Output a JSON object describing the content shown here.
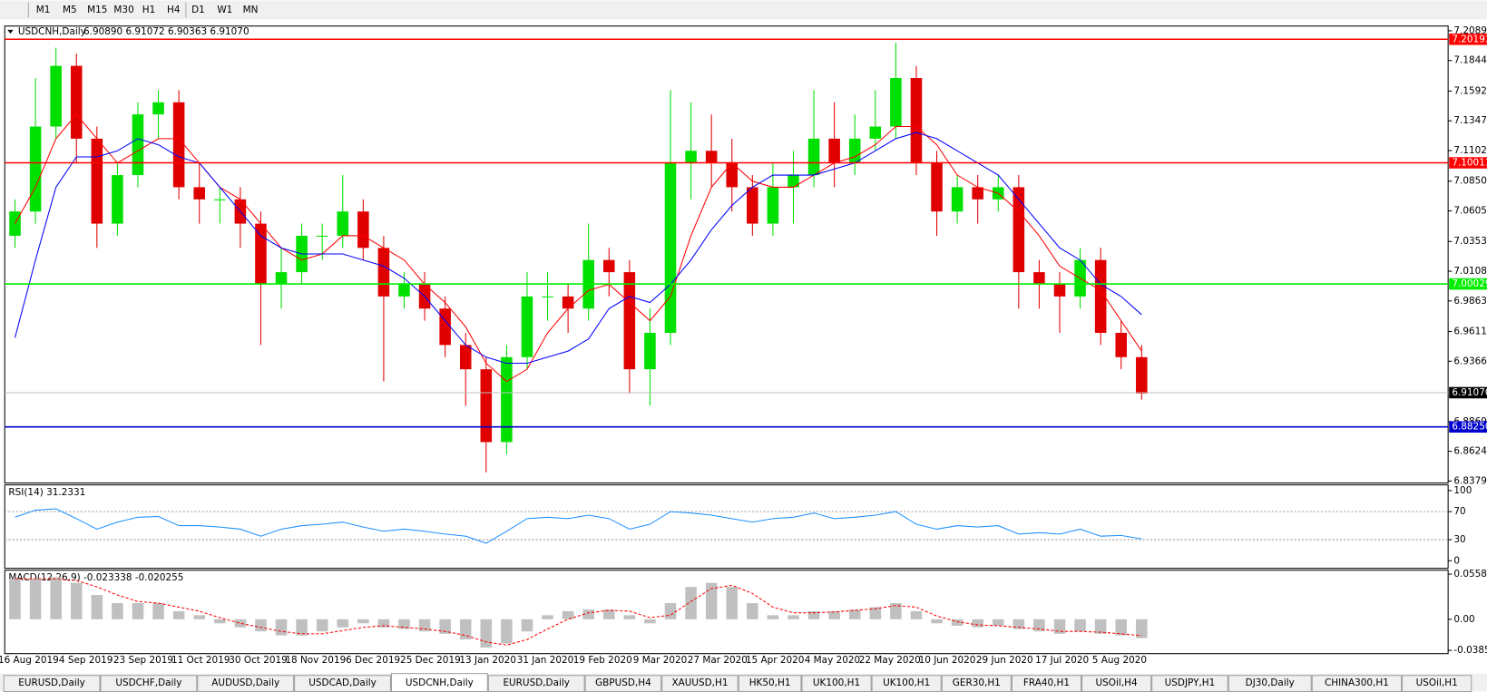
{
  "toolbar": {
    "timeframes": [
      "M1",
      "M5",
      "M15",
      "M30",
      "H1",
      "H4",
      "D1",
      "W1",
      "MN"
    ]
  },
  "tabs": [
    "EURUSD,Daily",
    "USDCHF,Daily",
    "AUDUSD,Daily",
    "USDCAD,Daily",
    "USDCNH,Daily",
    "EURUSD,Daily",
    "GBPUSD,H4",
    "XAUUSD,H1",
    "HK50,H1",
    "UK100,H1",
    "UK100,H1",
    "GER30,H1",
    "FRA40,H1",
    "USOil,H4",
    "USDJPY,H1",
    "DJ30,Daily",
    "CHINA300,H1",
    "USOil,H1"
  ],
  "active_tab": 4,
  "chart_data": [
    {
      "type": "candlestick",
      "title": "USDCNH,Daily",
      "ohlc": "6.90890 6.91072 6.90363 6.91070",
      "up_color": "#00e000",
      "down_color": "#e00000",
      "ylim": [
        6.8363,
        7.2128
      ],
      "yticks": [
        {
          "value": 7.2089,
          "label": "7.20890"
        },
        {
          "value": 7.1844,
          "label": "7.18440"
        },
        {
          "value": 7.1592,
          "label": "7.15920"
        },
        {
          "value": 7.1347,
          "label": "7.13470"
        },
        {
          "value": 7.1102,
          "label": "7.11020"
        },
        {
          "value": 7.085,
          "label": "7.08500"
        },
        {
          "value": 7.0605,
          "label": "7.06050"
        },
        {
          "value": 7.0353,
          "label": "7.03530"
        },
        {
          "value": 7.0108,
          "label": "7.01080"
        },
        {
          "value": 6.9863,
          "label": "6.98630"
        },
        {
          "value": 6.9611,
          "label": "6.96110"
        },
        {
          "value": 6.9366,
          "label": "6.93660"
        },
        {
          "value": 6.8869,
          "label": "6.88690"
        },
        {
          "value": 6.8624,
          "label": "6.86240"
        },
        {
          "value": 6.8379,
          "label": "6.83790"
        }
      ],
      "open": [
        7.04,
        7.06,
        7.13,
        7.18,
        7.12,
        7.05,
        7.09,
        7.14,
        7.15,
        7.08,
        7.07,
        7.07,
        7.05,
        7.0,
        7.01,
        7.04,
        7.04,
        7.06,
        7.03,
        6.99,
        7.0,
        6.98,
        6.95,
        6.93,
        6.87,
        6.94,
        6.99,
        6.99,
        6.98,
        7.02,
        7.01,
        6.93,
        6.96,
        7.1,
        7.11,
        7.1,
        7.08,
        7.05,
        7.08,
        7.09,
        7.12,
        7.1,
        7.12,
        7.13,
        7.17,
        7.1,
        7.06,
        7.08,
        7.07,
        7.08,
        7.01,
        7.0,
        6.99,
        7.02,
        6.96,
        6.94
      ],
      "high": [
        7.07,
        7.17,
        7.195,
        7.19,
        7.13,
        7.1,
        7.15,
        7.16,
        7.16,
        7.1,
        7.08,
        7.08,
        7.06,
        7.03,
        7.05,
        7.05,
        7.09,
        7.07,
        7.04,
        7.01,
        7.01,
        6.99,
        6.96,
        6.94,
        6.95,
        7.01,
        7.01,
        7.0,
        7.05,
        7.03,
        7.02,
        6.98,
        7.16,
        7.15,
        7.14,
        7.12,
        7.09,
        7.1,
        7.11,
        7.16,
        7.15,
        7.14,
        7.16,
        7.199,
        7.18,
        7.11,
        7.09,
        7.09,
        7.09,
        7.09,
        7.02,
        7.01,
        7.03,
        7.03,
        6.97,
        6.95
      ],
      "low": [
        7.03,
        7.05,
        7.12,
        7.1,
        7.03,
        7.04,
        7.08,
        7.12,
        7.07,
        7.05,
        7.05,
        7.03,
        6.95,
        6.98,
        7.0,
        7.02,
        7.03,
        7.02,
        6.92,
        6.98,
        6.97,
        6.94,
        6.9,
        6.845,
        6.86,
        6.93,
        6.97,
        6.96,
        6.97,
        6.99,
        6.91,
        6.9,
        6.95,
        7.07,
        7.08,
        7.06,
        7.04,
        7.04,
        7.05,
        7.08,
        7.08,
        7.09,
        7.11,
        7.12,
        7.09,
        7.04,
        7.05,
        7.05,
        7.06,
        6.98,
        6.98,
        6.96,
        6.98,
        6.95,
        6.93,
        6.905
      ],
      "close": [
        7.06,
        7.13,
        7.18,
        7.12,
        7.05,
        7.09,
        7.14,
        7.15,
        7.08,
        7.07,
        7.07,
        7.05,
        7.0,
        7.01,
        7.04,
        7.04,
        7.06,
        7.03,
        6.99,
        7.0,
        6.98,
        6.95,
        6.93,
        6.87,
        6.94,
        6.99,
        6.99,
        6.98,
        7.02,
        7.01,
        6.93,
        6.96,
        7.1,
        7.11,
        7.1,
        7.08,
        7.05,
        7.08,
        7.09,
        7.12,
        7.1,
        7.12,
        7.13,
        7.17,
        7.1,
        7.06,
        7.08,
        7.07,
        7.08,
        7.01,
        7.0,
        6.99,
        7.02,
        6.96,
        6.94,
        6.91
      ],
      "series": [
        {
          "color": "#ff0000",
          "values": [
            7.05,
            7.08,
            7.12,
            7.14,
            7.12,
            7.1,
            7.11,
            7.12,
            7.12,
            7.1,
            7.08,
            7.07,
            7.05,
            7.03,
            7.02,
            7.025,
            7.04,
            7.04,
            7.03,
            7.02,
            7.0,
            6.985,
            6.965,
            6.935,
            6.92,
            6.93,
            6.96,
            6.98,
            6.995,
            7.0,
            6.985,
            6.97,
            6.99,
            7.04,
            7.08,
            7.1,
            7.085,
            7.08,
            7.08,
            7.09,
            7.1,
            7.105,
            7.115,
            7.13,
            7.13,
            7.115,
            7.09,
            7.08,
            7.075,
            7.06,
            7.04,
            7.015,
            7.005,
            6.995,
            6.97,
            6.945
          ]
        },
        {
          "color": "#0000ff",
          "values": [
            6.956,
            7.02,
            7.08,
            7.105,
            7.105,
            7.11,
            7.12,
            7.115,
            7.105,
            7.1,
            7.08,
            7.06,
            7.04,
            7.03,
            7.025,
            7.025,
            7.025,
            7.02,
            7.015,
            7.005,
            6.99,
            6.97,
            6.95,
            6.94,
            6.935,
            6.935,
            6.94,
            6.945,
            6.955,
            6.98,
            6.99,
            6.985,
            7.0,
            7.02,
            7.045,
            7.065,
            7.08,
            7.09,
            7.09,
            7.09,
            7.095,
            7.1,
            7.11,
            7.12,
            7.125,
            7.12,
            7.11,
            7.1,
            7.09,
            7.07,
            7.05,
            7.03,
            7.02,
            7.0,
            6.99,
            6.975
          ]
        }
      ],
      "levels": [
        {
          "price": 7.20193,
          "color": "#ff0000"
        },
        {
          "price": 7.10011,
          "color": "#ff0000"
        },
        {
          "price": 7.00029,
          "color": "#00ee00"
        },
        {
          "price": {
            "value": 6.8825,
            "label": "6.88250"
          },
          "color": "#0000cc"
        }
      ],
      "current": {
        "value": 6.9107,
        "label": "6.91070"
      },
      "date_labels": [
        "16 Aug 2019",
        "4 Sep 2019",
        "23 Sep 2019",
        "11 Oct 2019",
        "30 Oct 2019",
        "18 Nov 2019",
        "6 Dec 2019",
        "25 Dec 2019",
        "13 Jan 2020",
        "31 Jan 2020",
        "19 Feb 2020",
        "9 Mar 2020",
        "27 Mar 2020",
        "15 Apr 2020",
        "4 May 2020",
        "22 May 2020",
        "10 Jun 2020",
        "29 Jun 2020",
        "17 Jul 2020",
        "5 Aug 2020"
      ]
    },
    {
      "type": "line",
      "title": "RSI(14) 31.2331",
      "ylim": [
        -10.8,
        108.1
      ],
      "yticks": [
        100,
        70,
        30,
        0
      ],
      "levels": [
        70,
        30
      ],
      "series": [
        {
          "color": "#1e90ff",
          "values": [
            62,
            72,
            74,
            60,
            45,
            55,
            62,
            63,
            50,
            50,
            48,
            45,
            35,
            45,
            50,
            52,
            55,
            48,
            42,
            45,
            42,
            38,
            35,
            25,
            42,
            60,
            62,
            60,
            65,
            60,
            45,
            52,
            70,
            68,
            65,
            60,
            55,
            60,
            62,
            68,
            60,
            62,
            65,
            70,
            52,
            45,
            50,
            48,
            50,
            38,
            40,
            38,
            45,
            35,
            36,
            31.2331
          ]
        }
      ]
    },
    {
      "type": "macd",
      "title": "MACD(12,26,9) -0.023338 -0.020255",
      "ylim": [
        -0.0425,
        0.0607
      ],
      "yticks": [
        0.05581,
        {
          "value": 0,
          "label": "0.00"
        },
        -0.03852
      ],
      "histogram": {
        "color": "#c0c0c0",
        "values": [
          0.05,
          0.05,
          0.052,
          0.045,
          0.03,
          0.02,
          0.02,
          0.02,
          0.01,
          0.005,
          -0.005,
          -0.01,
          -0.015,
          -0.02,
          -0.02,
          -0.015,
          -0.01,
          -0.005,
          -0.01,
          -0.012,
          -0.015,
          -0.018,
          -0.025,
          -0.035,
          -0.03,
          -0.015,
          0.005,
          0.01,
          0.012,
          0.012,
          0.005,
          -0.005,
          0.02,
          0.04,
          0.045,
          0.04,
          0.02,
          0.005,
          0.005,
          0.01,
          0.01,
          0.012,
          0.015,
          0.02,
          0.01,
          -0.005,
          -0.008,
          -0.01,
          -0.008,
          -0.012,
          -0.015,
          -0.018,
          -0.015,
          -0.018,
          -0.02,
          -0.023338
        ]
      },
      "signal": {
        "color": "#ff0000",
        "values": [
          0.05,
          0.05,
          0.05,
          0.048,
          0.04,
          0.03,
          0.022,
          0.02,
          0.015,
          0.01,
          0.002,
          -0.005,
          -0.01,
          -0.015,
          -0.018,
          -0.018,
          -0.014,
          -0.01,
          -0.008,
          -0.01,
          -0.012,
          -0.015,
          -0.02,
          -0.028,
          -0.032,
          -0.025,
          -0.012,
          0.0,
          0.008,
          0.011,
          0.01,
          0.002,
          0.005,
          0.022,
          0.038,
          0.042,
          0.032,
          0.015,
          0.008,
          0.008,
          0.009,
          0.011,
          0.013,
          0.017,
          0.015,
          0.004,
          -0.003,
          -0.007,
          -0.008,
          -0.01,
          -0.012,
          -0.015,
          -0.015,
          -0.016,
          -0.018,
          -0.020255
        ]
      }
    }
  ]
}
